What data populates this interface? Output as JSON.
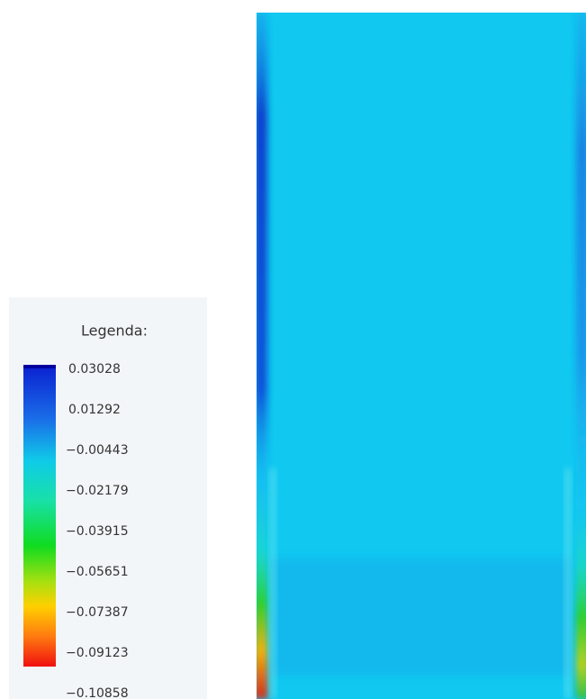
{
  "legend": {
    "title": "Legenda:",
    "labels": [
      "0.03028",
      "0.01292",
      "−0.00443",
      "−0.02179",
      "−0.03915",
      "−0.05651",
      "−0.07387",
      "−0.09123",
      "−0.10858"
    ]
  }
}
